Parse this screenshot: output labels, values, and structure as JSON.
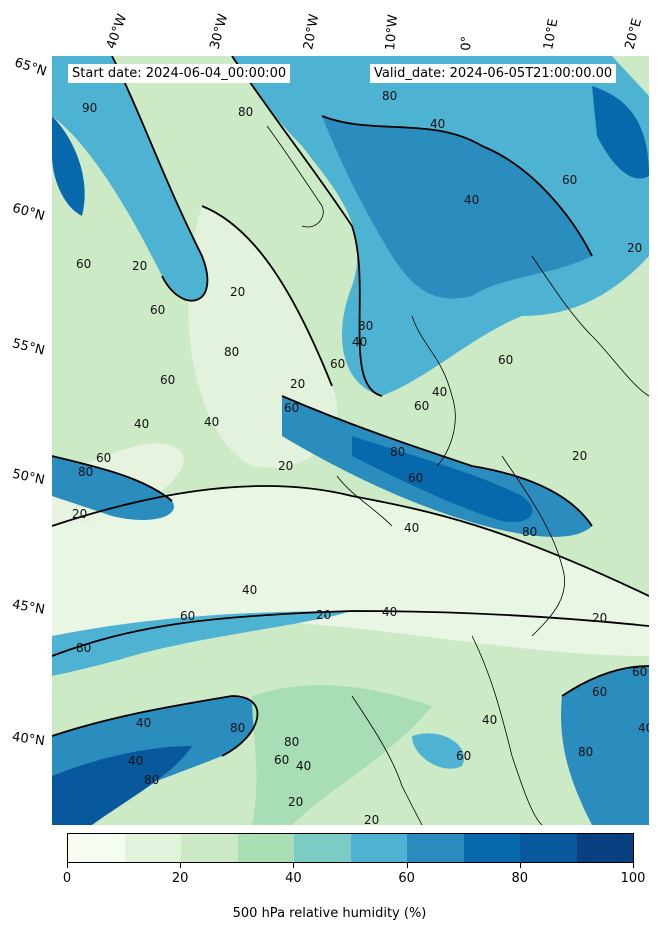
{
  "header": {
    "start_date": "Start date: 2024-06-04_00:00:00",
    "valid_date": "Valid_date: 2024-06-05T21:00:00.00"
  },
  "axes": {
    "lon_labels": [
      "40°W",
      "30°W",
      "20°W",
      "10°W",
      "0°",
      "10°E",
      "20°E"
    ],
    "lat_labels": [
      "65°N",
      "60°N",
      "55°N",
      "50°N",
      "45°N",
      "40°N"
    ]
  },
  "colorbar": {
    "label": "500 hPa relative humidity (%)",
    "tick_labels": [
      "0",
      "20",
      "40",
      "60",
      "80",
      "100"
    ],
    "colors": [
      "#f7fcf0",
      "#e0f3db",
      "#ccebc5",
      "#a8ddb5",
      "#7bccc4",
      "#4eb3d3",
      "#2b8cbe",
      "#0868ac",
      "#08589e",
      "#084081"
    ]
  },
  "contour_labels": [
    "20",
    "40",
    "60",
    "80"
  ]
}
